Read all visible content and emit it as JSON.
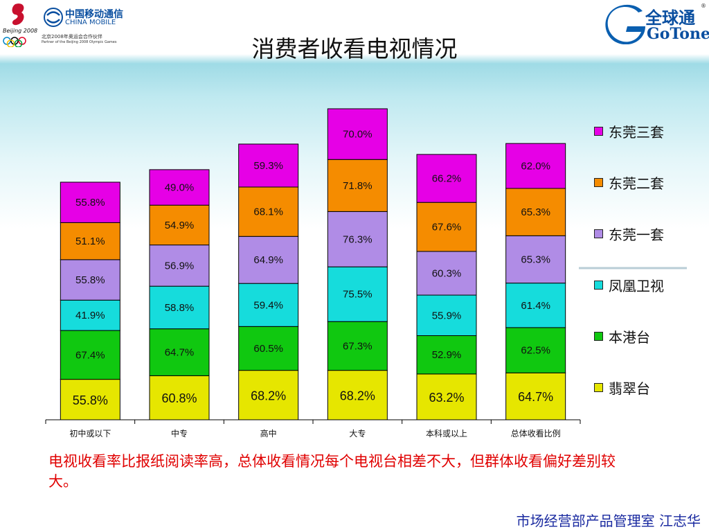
{
  "slide": {
    "title": "消费者收看电视情况",
    "caption": "电视收看率比报纸阅读率高，总体收看情况每个电视台相差不大，但群体收看偏好差别较大。",
    "footer": "市场经营部产品管理室  江志华"
  },
  "logos": {
    "olympic_text": "Beijing 2008",
    "china_mobile_cn": "中国移动通信",
    "china_mobile_en": "CHINA MOBILE",
    "partner_cn": "北京2008年奥运会合作伙伴",
    "partner_en": "Partner of the Beijing 2008 Olympic Games",
    "gotone_cn": "全球通",
    "gotone_en": "GoTone"
  },
  "chart_data": {
    "type": "bar",
    "stacked": true,
    "categories": [
      "初中或以下",
      "中专",
      "高中",
      "大专",
      "本科或以上",
      "总体收看比例"
    ],
    "series": [
      {
        "name": "翡翠台",
        "color": "#e6e600",
        "values": [
          55.8,
          60.8,
          68.2,
          68.2,
          63.2,
          64.7
        ]
      },
      {
        "name": "本港台",
        "color": "#10c810",
        "values": [
          67.4,
          64.7,
          60.5,
          67.3,
          52.9,
          62.5
        ]
      },
      {
        "name": "凤凰卫视",
        "color": "#16dcdc",
        "values": [
          41.9,
          58.8,
          59.4,
          75.5,
          55.9,
          61.4
        ]
      },
      {
        "name": "东莞一套",
        "color": "#b08ce6",
        "values": [
          55.8,
          56.9,
          64.9,
          76.3,
          60.3,
          65.3
        ]
      },
      {
        "name": "东莞二套",
        "color": "#f58c00",
        "values": [
          51.1,
          54.9,
          68.1,
          71.8,
          67.6,
          65.3
        ]
      },
      {
        "name": "东莞三套",
        "color": "#e600e6",
        "values": [
          55.8,
          49.0,
          59.3,
          70.0,
          66.2,
          62.0
        ]
      }
    ],
    "value_format": "percent_1dp",
    "legend_position": "right",
    "legend_order": [
      "东莞三套",
      "东莞二套",
      "东莞一套",
      "凤凰卫视",
      "本港台",
      "翡翠台"
    ],
    "grid": false
  }
}
